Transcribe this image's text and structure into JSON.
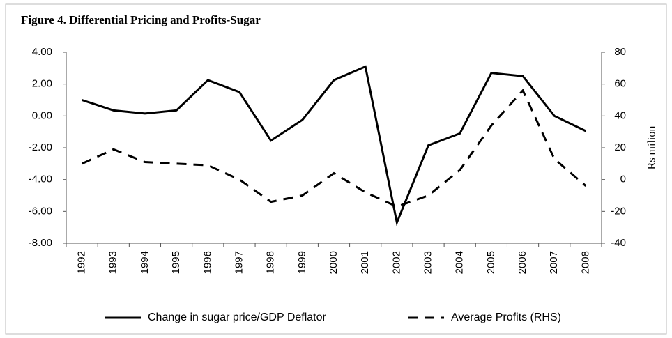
{
  "chart_data": {
    "type": "line",
    "title": "Figure 4. Differential Pricing and Profits-Sugar",
    "y2_label": "Rs milion",
    "categories": [
      "1992",
      "1993",
      "1994",
      "1995",
      "1996",
      "1997",
      "1998",
      "1999",
      "2000",
      "2001",
      "2002",
      "2003",
      "2004",
      "2005",
      "2006",
      "2007",
      "2008"
    ],
    "series": [
      {
        "name": "Change in sugar price/GDP Deflator",
        "color": "#000000",
        "dash": false,
        "values": [
          1.0,
          0.35,
          0.15,
          0.35,
          2.25,
          1.5,
          -1.55,
          -0.25,
          2.25,
          3.1,
          -6.7,
          -1.85,
          -1.1,
          2.7,
          2.5,
          0.0,
          -0.95
        ]
      },
      {
        "name": "Average Profits (RHS)",
        "color": "#000000",
        "dash": true,
        "axis": "y2",
        "values": [
          10,
          19,
          11,
          10,
          9,
          0,
          -14,
          -10,
          4,
          -8,
          -17,
          -10,
          6,
          34,
          56,
          13,
          -4
        ]
      }
    ],
    "ylim": [
      -8,
      4
    ],
    "yticks": [
      {
        "value": -8,
        "label": "-8.00"
      },
      {
        "value": -6,
        "label": "-6.00"
      },
      {
        "value": -4,
        "label": "-4.00"
      },
      {
        "value": -2,
        "label": "-2.00"
      },
      {
        "value": 0,
        "label": "0.00"
      },
      {
        "value": 2,
        "label": "2.00"
      },
      {
        "value": 4,
        "label": "4.00"
      }
    ],
    "y2lim": [
      -40,
      80
    ],
    "y2ticks": [
      -40,
      -20,
      0,
      20,
      40,
      60,
      80
    ],
    "legend": "bottom",
    "grid": false
  }
}
